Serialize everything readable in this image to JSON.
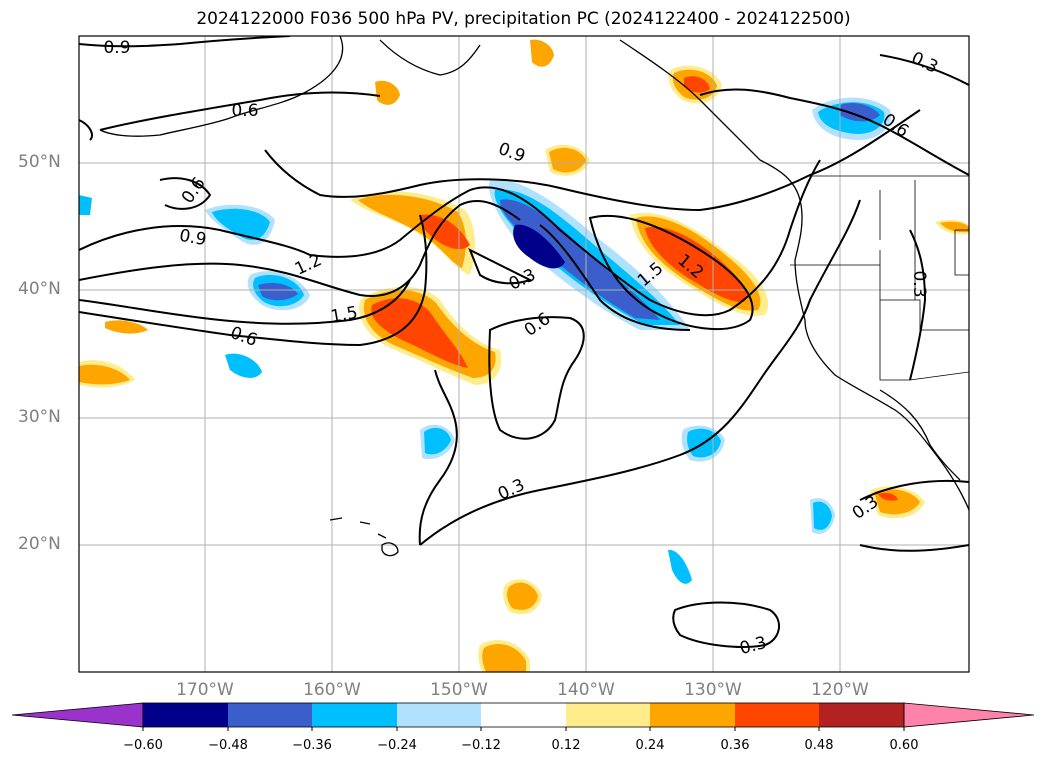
{
  "title": "2024122000 F036 500 hPa PV, precipitation PC (2024122400 - 2024122500)",
  "lat_labels": [
    "50°N",
    "40°N",
    "30°N",
    "20°N"
  ],
  "lon_labels": [
    "170°W",
    "160°W",
    "150°W",
    "140°W",
    "130°W",
    "120°W"
  ],
  "contour_labels": [
    "0.9",
    "0.6",
    "0.9",
    "0.6",
    "0.9",
    "1.2",
    "1.5",
    "0.6",
    "0.3",
    "0.6",
    "1.5",
    "1.2",
    "0.3",
    "0.3",
    "0.3",
    "0.3",
    "0.6",
    "0.3"
  ],
  "colorbar": {
    "ticks": [
      "−0.60",
      "−0.48",
      "−0.36",
      "−0.24",
      "−0.12",
      "0.12",
      "0.24",
      "0.36",
      "0.48",
      "0.60"
    ],
    "colors": [
      "#9933cc",
      "#00008b",
      "#3a5fcd",
      "#00bfff",
      "#b0e2ff",
      "#ffffff",
      "#ffec8b",
      "#ffa500",
      "#ff4500",
      "#b22222",
      "#ff82ab"
    ]
  }
}
